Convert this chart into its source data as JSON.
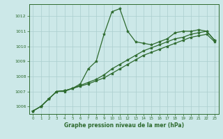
{
  "line1": {
    "x": [
      0,
      1,
      2,
      3,
      4,
      5,
      6,
      7,
      8,
      9,
      10,
      11,
      12,
      13,
      14,
      15,
      16,
      17,
      18,
      19,
      20,
      21,
      22,
      23
    ],
    "y": [
      1005.7,
      1006.0,
      1006.5,
      1007.0,
      1007.0,
      1007.2,
      1007.5,
      1008.5,
      1009.0,
      1010.8,
      1012.3,
      1012.5,
      1011.0,
      1010.3,
      1010.2,
      1010.1,
      1010.3,
      1010.5,
      1010.9,
      1011.0,
      1011.0,
      1011.1,
      1011.0,
      1010.4
    ]
  },
  "line2": {
    "x": [
      0,
      1,
      2,
      3,
      4,
      5,
      6,
      7,
      8,
      9,
      10,
      11,
      12,
      13,
      14,
      15,
      16,
      17,
      18,
      19,
      20,
      21,
      22,
      23
    ],
    "y": [
      1005.7,
      1006.0,
      1006.5,
      1007.0,
      1007.05,
      1007.2,
      1007.4,
      1007.6,
      1007.8,
      1008.1,
      1008.5,
      1008.8,
      1009.1,
      1009.4,
      1009.7,
      1009.9,
      1010.1,
      1010.3,
      1010.5,
      1010.6,
      1010.8,
      1010.9,
      1011.0,
      1010.4
    ]
  },
  "line3": {
    "x": [
      0,
      1,
      2,
      3,
      4,
      5,
      6,
      7,
      8,
      9,
      10,
      11,
      12,
      13,
      14,
      15,
      16,
      17,
      18,
      19,
      20,
      21,
      22,
      23
    ],
    "y": [
      1005.7,
      1006.0,
      1006.5,
      1007.0,
      1007.05,
      1007.2,
      1007.35,
      1007.5,
      1007.7,
      1007.9,
      1008.2,
      1008.5,
      1008.8,
      1009.1,
      1009.4,
      1009.6,
      1009.8,
      1010.0,
      1010.2,
      1010.4,
      1010.6,
      1010.7,
      1010.8,
      1010.3
    ]
  },
  "ylim": [
    1005.5,
    1012.8
  ],
  "xlim": [
    -0.5,
    23.5
  ],
  "yticks": [
    1006,
    1007,
    1008,
    1009,
    1010,
    1011,
    1012
  ],
  "xticks": [
    0,
    1,
    2,
    3,
    4,
    5,
    6,
    7,
    8,
    9,
    10,
    11,
    12,
    13,
    14,
    15,
    16,
    17,
    18,
    19,
    20,
    21,
    22,
    23
  ],
  "xlabel": "Graphe pression niveau de la mer (hPa)",
  "line_color": "#2d6a2d",
  "bg_color": "#cce8e8",
  "grid_color": "#aacece",
  "marker": "*",
  "markersize": 3,
  "linewidth": 0.9
}
